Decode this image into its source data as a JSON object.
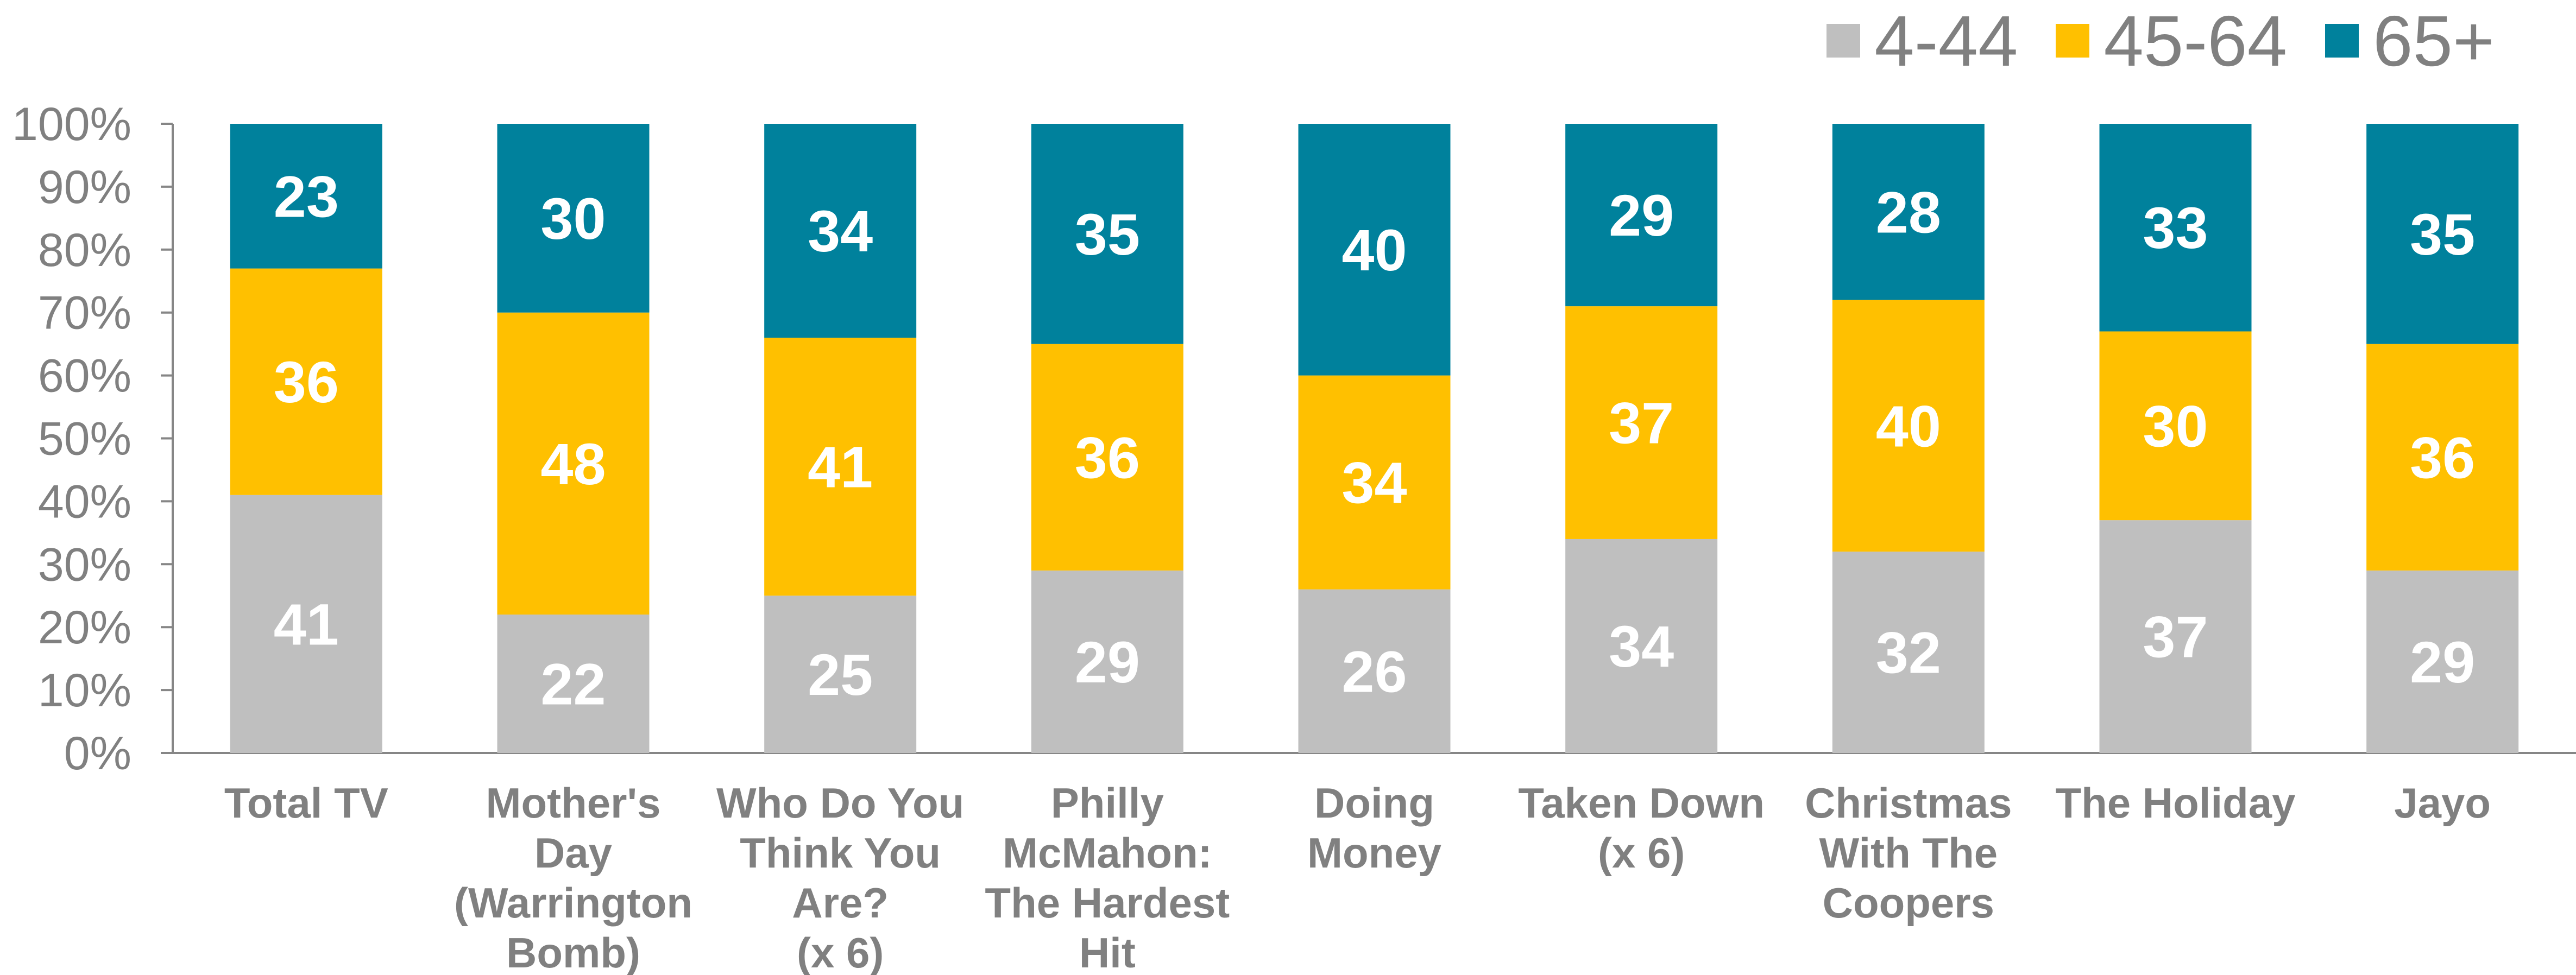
{
  "chart_data": {
    "type": "bar",
    "stacked": true,
    "title": "",
    "xlabel": "",
    "ylabel": "",
    "ylim": [
      0,
      100
    ],
    "y_ticks": [
      "0%",
      "10%",
      "20%",
      "30%",
      "40%",
      "50%",
      "60%",
      "70%",
      "80%",
      "90%",
      "100%"
    ],
    "grid": false,
    "legend_position": "top-right",
    "categories": [
      [
        "Total TV"
      ],
      [
        "Mother's",
        "Day",
        "(Warrington",
        "Bomb)"
      ],
      [
        "Who Do You",
        "Think You",
        "Are?",
        "(x 6)"
      ],
      [
        "Philly",
        "McMahon:",
        "The Hardest",
        "Hit"
      ],
      [
        "Doing",
        "Money"
      ],
      [
        "Taken Down",
        "(x 6)"
      ],
      [
        "Christmas",
        "With The",
        "Coopers"
      ],
      [
        "The Holiday"
      ],
      [
        "Jayo"
      ]
    ],
    "series": [
      {
        "name": "4-44",
        "color": "#BFBFBF",
        "values": [
          41,
          22,
          25,
          29,
          26,
          34,
          32,
          37,
          29
        ]
      },
      {
        "name": "45-64",
        "color": "#FFC000",
        "values": [
          36,
          48,
          41,
          36,
          34,
          37,
          40,
          30,
          36
        ]
      },
      {
        "name": "65+",
        "color": "#00819C",
        "values": [
          23,
          30,
          34,
          35,
          40,
          29,
          28,
          33,
          35
        ]
      }
    ]
  }
}
